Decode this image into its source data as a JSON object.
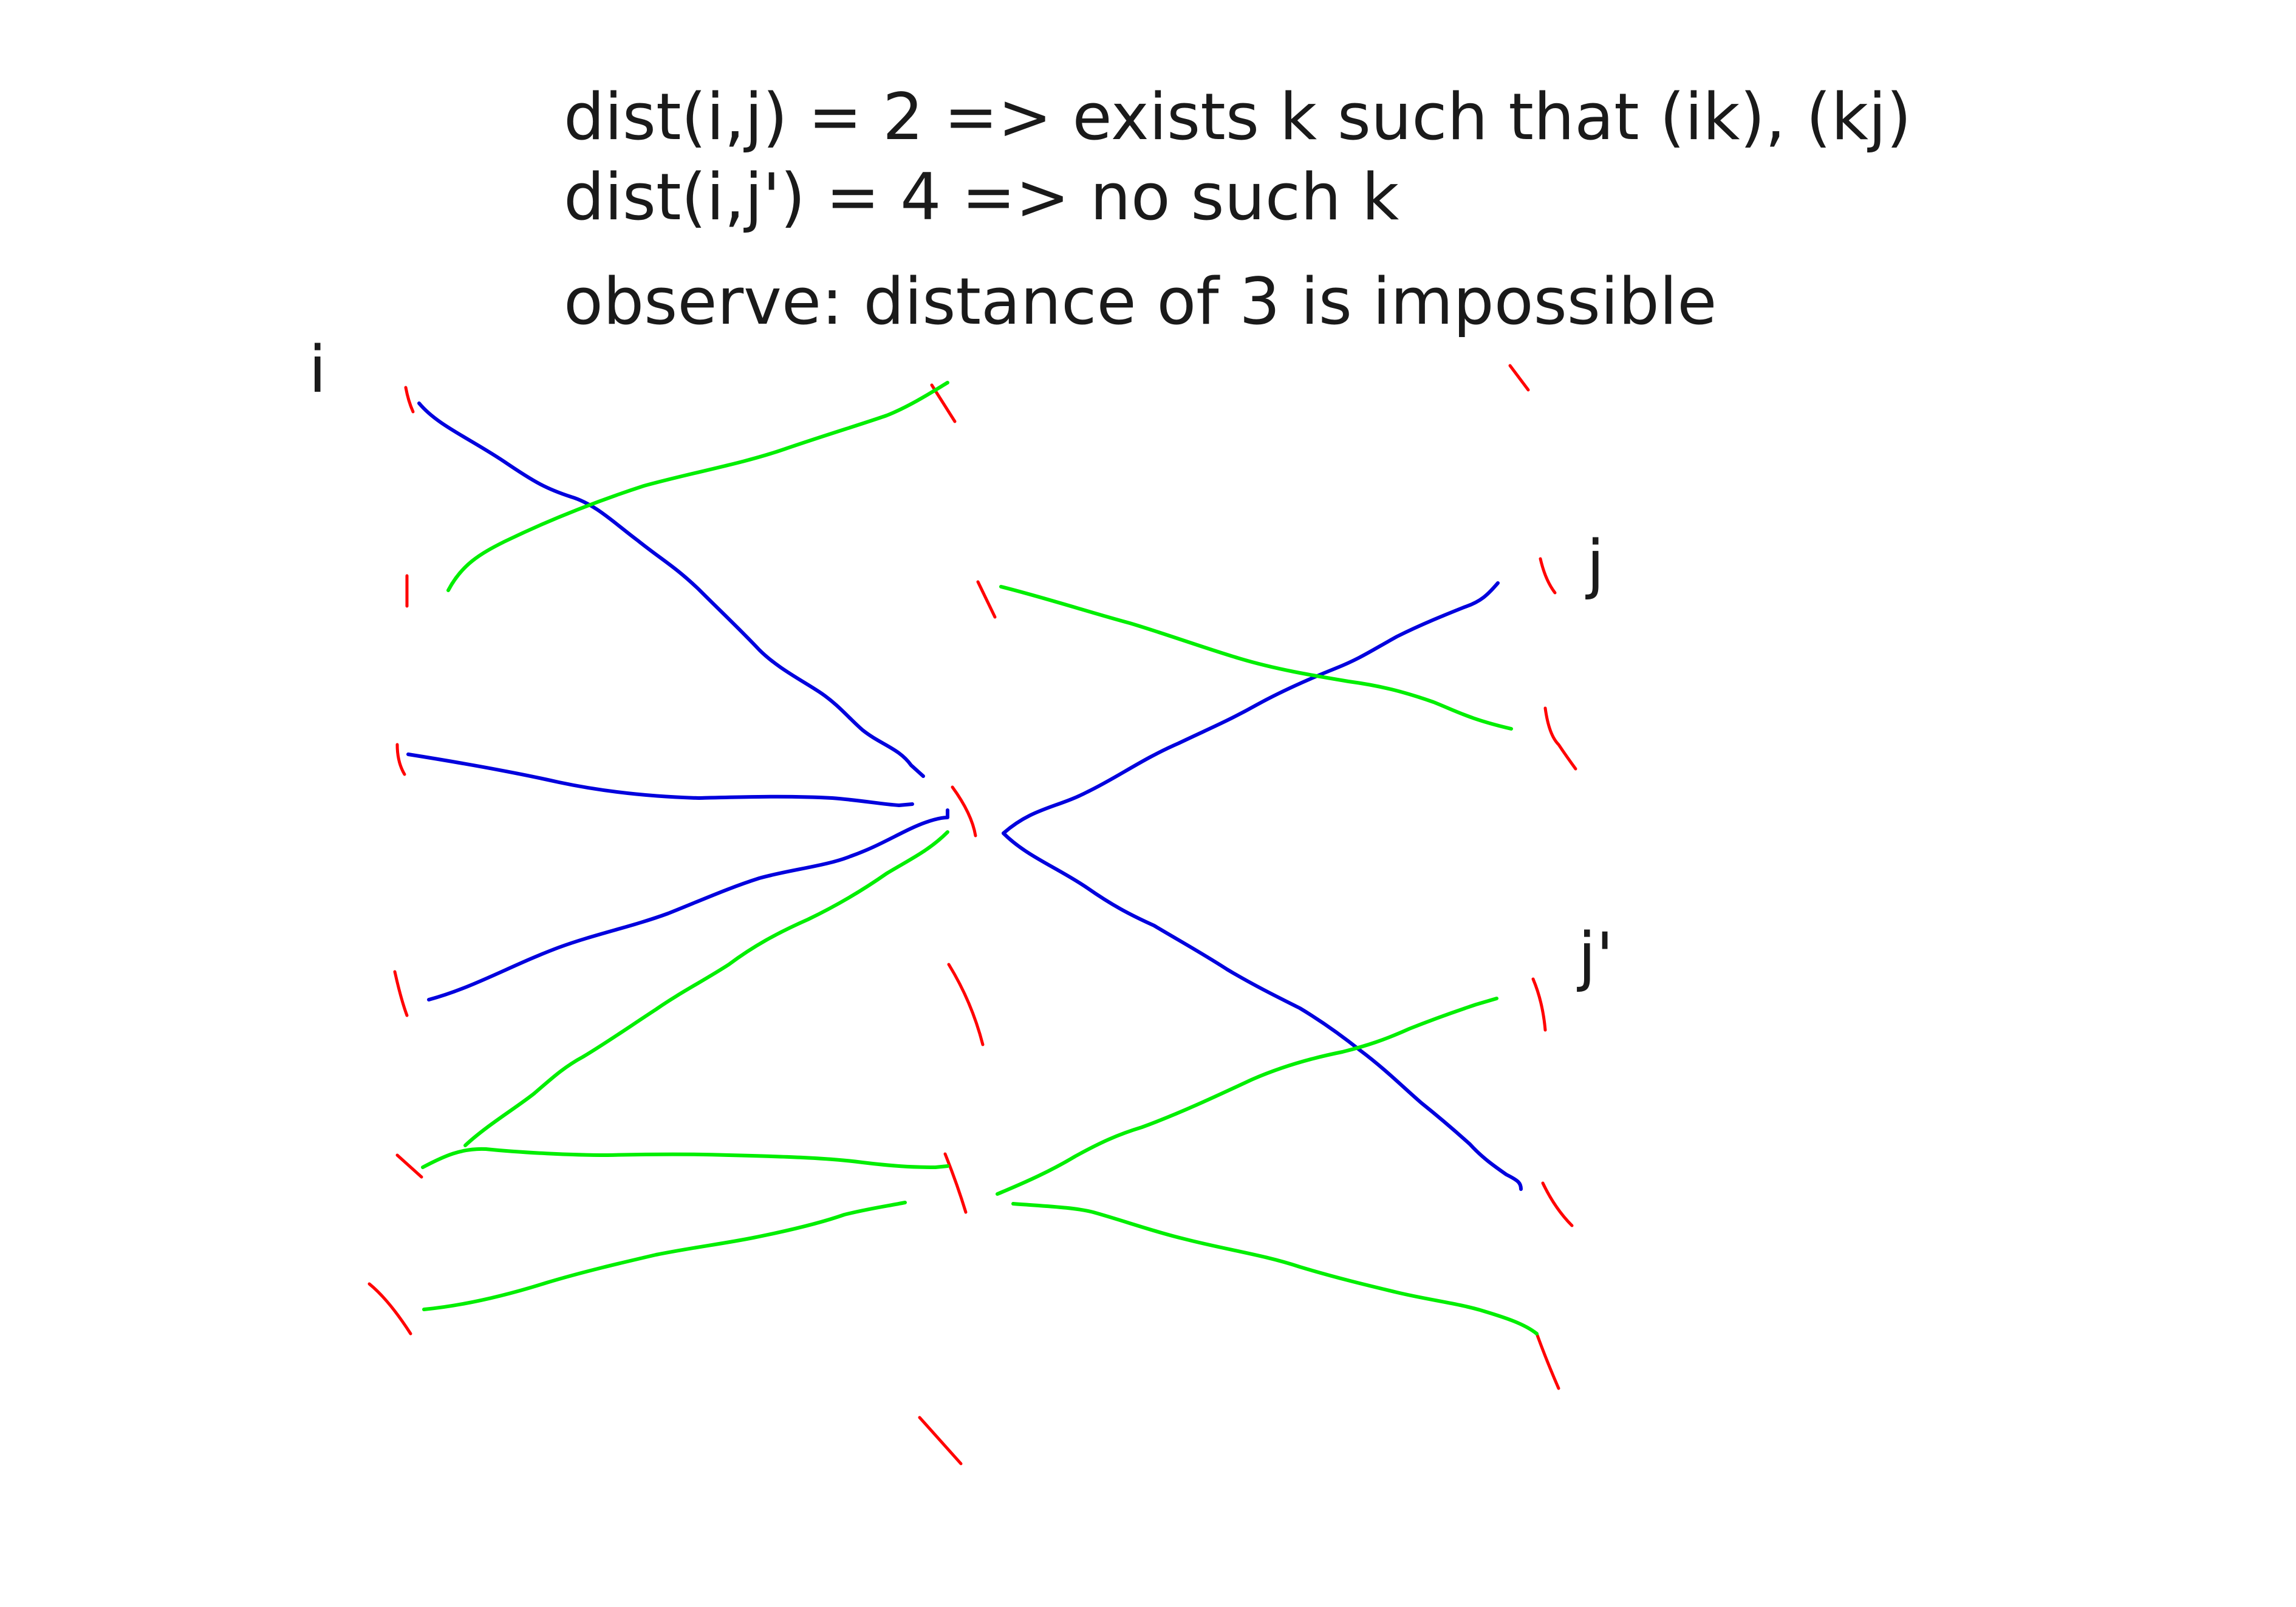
{
  "notes": {
    "line1": "dist(i,j) = 2 => exists k such that (ik), (kj)",
    "line2": "dist(i,j') = 4 => no such k",
    "line3": "observe: distance of 3 is impossible"
  },
  "labels": {
    "i": "i",
    "j": "j",
    "j_prime": "j'"
  },
  "colors": {
    "vertex_marks": "#ff0000",
    "path_edges": "#0000dd",
    "other_edges": "#00ee00",
    "text": "#1a1a1a"
  }
}
